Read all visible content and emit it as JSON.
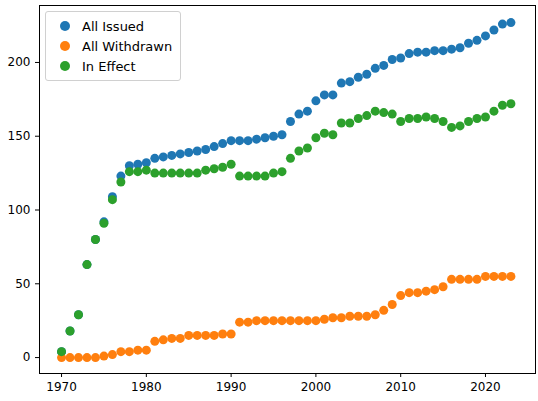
{
  "chart_data": {
    "type": "scatter",
    "x": [
      1970,
      1971,
      1972,
      1973,
      1974,
      1975,
      1976,
      1977,
      1978,
      1979,
      1980,
      1981,
      1982,
      1983,
      1984,
      1985,
      1986,
      1987,
      1988,
      1989,
      1990,
      1991,
      1992,
      1993,
      1994,
      1995,
      1996,
      1997,
      1998,
      1999,
      2000,
      2001,
      2002,
      2003,
      2004,
      2005,
      2006,
      2007,
      2008,
      2009,
      2010,
      2011,
      2012,
      2013,
      2014,
      2015,
      2016,
      2017,
      2018,
      2019,
      2020,
      2021,
      2022,
      2023
    ],
    "series": [
      {
        "name": "All Issued",
        "color": "#1f77b4",
        "marker": "circle",
        "values": [
          4,
          18,
          29,
          63,
          80,
          92,
          109,
          123,
          130,
          131,
          132,
          135,
          136,
          137,
          138,
          139,
          140,
          141,
          143,
          145,
          147,
          147,
          147,
          148,
          149,
          150,
          151,
          160,
          165,
          167,
          174,
          178,
          178,
          186,
          187,
          190,
          192,
          196,
          198,
          202,
          203,
          206,
          207,
          207,
          208,
          208,
          209,
          210,
          213,
          215,
          218,
          222,
          226,
          227
        ]
      },
      {
        "name": "All Withdrawn",
        "color": "#ff7f0e",
        "marker": "circle",
        "values": [
          0,
          0,
          0,
          0,
          0,
          1,
          2,
          4,
          4,
          5,
          5,
          11,
          12,
          13,
          13,
          15,
          15,
          15,
          15,
          16,
          16,
          24,
          24,
          25,
          25,
          25,
          25,
          25,
          25,
          25,
          25,
          26,
          27,
          27,
          28,
          28,
          28,
          29,
          32,
          36,
          42,
          44,
          44,
          45,
          46,
          48,
          53,
          53,
          53,
          53,
          55,
          55,
          55,
          55
        ]
      },
      {
        "name": "In Effect",
        "color": "#2ca02c",
        "marker": "circle",
        "values": [
          4,
          18,
          29,
          63,
          80,
          91,
          107,
          119,
          126,
          126,
          127,
          125,
          125,
          125,
          125,
          125,
          125,
          127,
          128,
          129,
          131,
          123,
          123,
          123,
          123,
          125,
          126,
          135,
          140,
          142,
          149,
          152,
          151,
          159,
          159,
          162,
          164,
          167,
          166,
          165,
          160,
          162,
          162,
          163,
          162,
          160,
          156,
          157,
          160,
          162,
          163,
          167,
          171,
          172
        ]
      }
    ],
    "xlim": [
      1967.4,
      2025.9
    ],
    "xticks": [
      1970,
      1980,
      1990,
      2000,
      2010,
      2020
    ],
    "ylim": [
      -10.8,
      238.6
    ],
    "yticks": [
      0,
      50,
      100,
      150,
      200
    ],
    "grid": false,
    "legend": "upper left"
  }
}
